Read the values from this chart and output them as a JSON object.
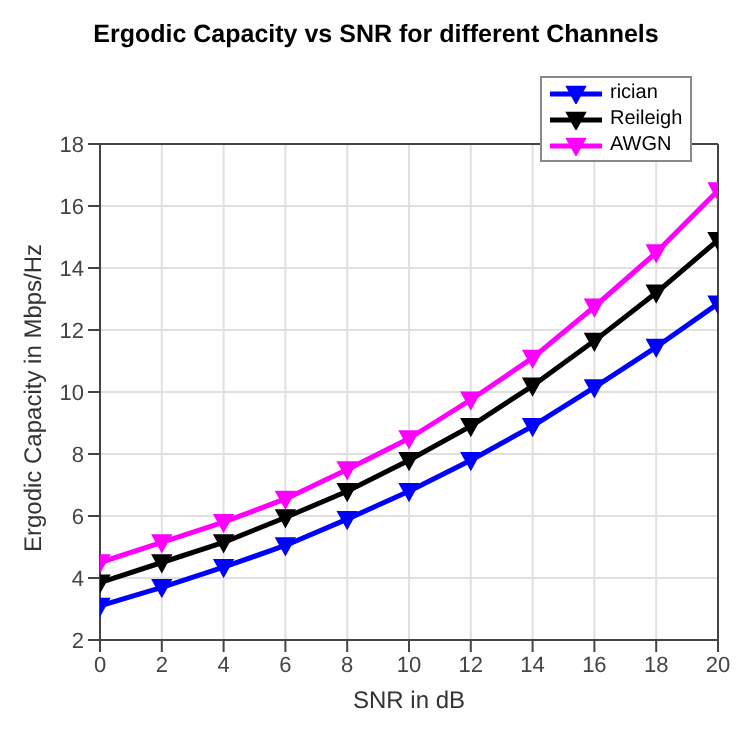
{
  "chart_data": {
    "type": "line",
    "title": "Ergodic Capacity vs SNR for different Channels",
    "xlabel": "SNR in dB",
    "ylabel": "Ergodic Capacity in Mbps/Hz",
    "x": [
      0,
      2,
      4,
      6,
      8,
      10,
      12,
      14,
      16,
      18,
      20
    ],
    "series": [
      {
        "name": "rician",
        "color": "#0000ff",
        "values": [
          3.1,
          3.7,
          4.35,
          5.05,
          5.9,
          6.8,
          7.8,
          8.9,
          10.15,
          11.45,
          12.85
        ]
      },
      {
        "name": "Reileigh",
        "color": "#000000",
        "values": [
          3.85,
          4.5,
          5.15,
          5.95,
          6.8,
          7.8,
          8.9,
          10.2,
          11.65,
          13.2,
          14.9
        ]
      },
      {
        "name": "AWGN",
        "color": "#ff00ff",
        "values": [
          4.5,
          5.15,
          5.8,
          6.55,
          7.5,
          8.5,
          9.75,
          11.1,
          12.75,
          14.5,
          16.5
        ]
      }
    ],
    "xlim": [
      0,
      20
    ],
    "xticks": [
      0,
      2,
      4,
      6,
      8,
      10,
      12,
      14,
      16,
      18,
      20
    ],
    "ylim": [
      2,
      18
    ],
    "yticks": [
      2,
      4,
      6,
      8,
      10,
      12,
      14,
      16,
      18
    ],
    "grid": true,
    "legend": "top right",
    "marker": "triangle",
    "line_style": "solid"
  }
}
